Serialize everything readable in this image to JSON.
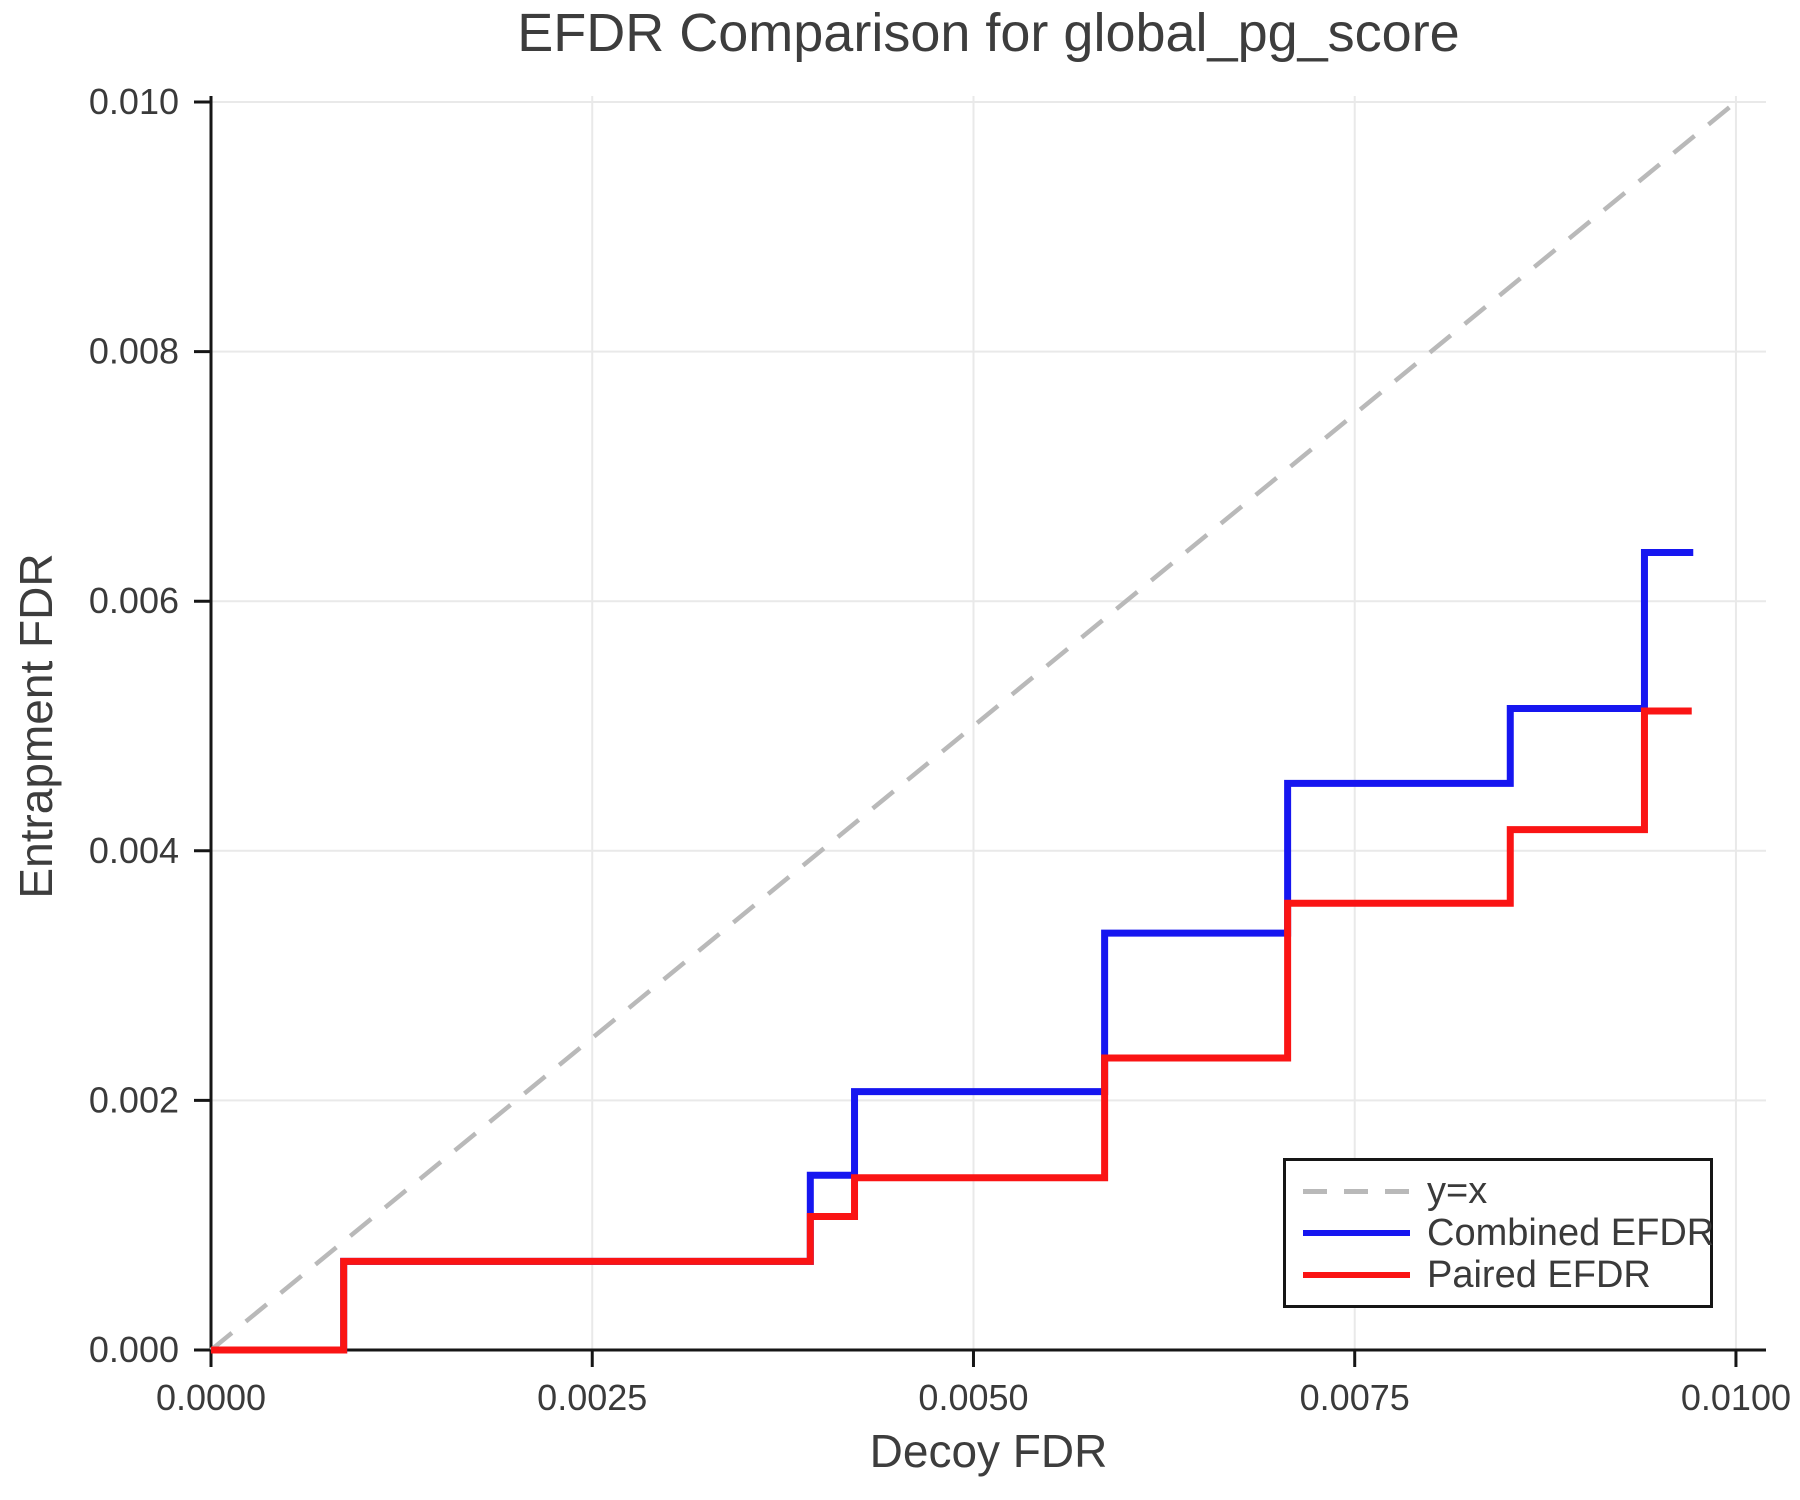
{
  "chart_data": {
    "type": "line",
    "title": "EFDR Comparison for global_pg_score",
    "xlabel": "Decoy FDR",
    "ylabel": "Entrapment FDR",
    "xlim": [
      0,
      0.010197
    ],
    "ylim": [
      0,
      0.010048
    ],
    "grid": true,
    "legend_position": "lower right",
    "x_ticks": [
      0.0,
      0.0025,
      0.005,
      0.0075,
      0.01
    ],
    "x_tick_labels": [
      "0.0000",
      "0.0025",
      "0.0050",
      "0.0075",
      "0.0100"
    ],
    "y_ticks": [
      0.0,
      0.002,
      0.004,
      0.006,
      0.008,
      0.01
    ],
    "y_tick_labels": [
      "0.000",
      "0.002",
      "0.004",
      "0.006",
      "0.008",
      "0.010"
    ],
    "series": [
      {
        "name": "y=x",
        "style": "dashed",
        "dash": true,
        "color": "#b9b9b9",
        "width": 4.5,
        "points": [
          [
            0,
            0
          ],
          [
            0.01,
            0.01
          ]
        ]
      },
      {
        "name": "Combined EFDR",
        "style": "solid",
        "dash": false,
        "color": "#1616f0",
        "width": 7,
        "step_x": [
          0,
          0.00087,
          0.00393,
          0.00422,
          0.00586,
          0.00706,
          0.00852,
          0.0094,
          0.00972
        ],
        "step_y": [
          0,
          0.00071,
          0.0014,
          0.00207,
          0.00334,
          0.00454,
          0.00514,
          0.00639
        ]
      },
      {
        "name": "Paired EFDR",
        "style": "solid",
        "dash": false,
        "color": "#fa1414",
        "width": 7,
        "step_x": [
          0,
          0.00087,
          0.00393,
          0.00422,
          0.00586,
          0.00706,
          0.00852,
          0.0094,
          0.00971
        ],
        "step_y": [
          0,
          0.00071,
          0.00107,
          0.00138,
          0.00234,
          0.00358,
          0.00417,
          0.00512
        ]
      }
    ]
  }
}
